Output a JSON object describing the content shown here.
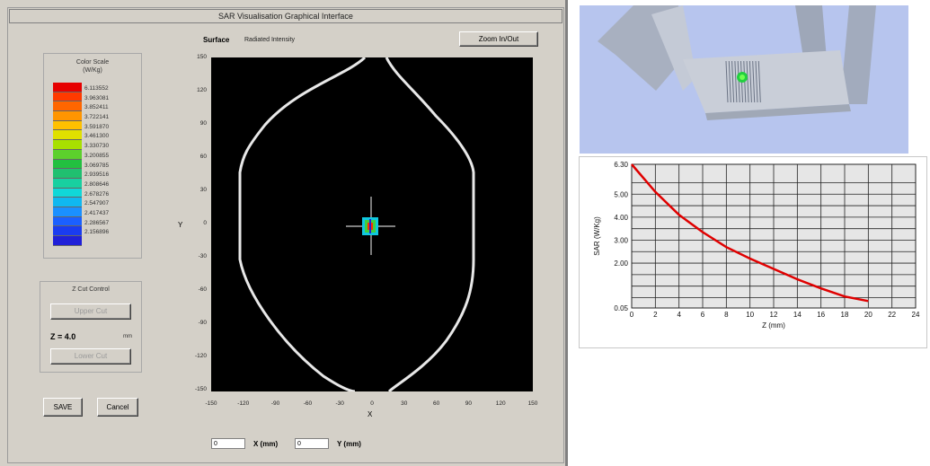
{
  "window": {
    "title": "SAR Visualisation Graphical Interface"
  },
  "surface": {
    "label": "Surface",
    "value": "Radiated Intensity"
  },
  "buttons": {
    "zoom": "Zoom In/Out",
    "save": "SAVE",
    "cancel": "Cancel",
    "upper": "Upper Cut",
    "lower": "Lower Cut"
  },
  "color_scale": {
    "title": "Color Scale",
    "unit": "(W/Kg)",
    "colors": [
      "#e60000",
      "#ff3a00",
      "#ff6600",
      "#ff9500",
      "#ffc000",
      "#e0e000",
      "#a8e000",
      "#5cd02c",
      "#22c040",
      "#20c070",
      "#18d0a0",
      "#10d8d8",
      "#10b8f0",
      "#1a90ff",
      "#1a60ff",
      "#1a3cf0",
      "#2020d8"
    ],
    "values": [
      "6.113552",
      "3.963081",
      "3.852411",
      "3.722141",
      "3.591870",
      "3.461300",
      "3.330730",
      "3.200855",
      "3.069785",
      "2.939516",
      "2.808646",
      "2.678276",
      "2.547907",
      "2.417437",
      "2.286567",
      "2.156896"
    ]
  },
  "zcut": {
    "title": "Z Cut Control",
    "value": "Z = 4.0",
    "unit": "mm"
  },
  "plot": {
    "y_ticks": [
      "150",
      "120",
      "90",
      "60",
      "30",
      "0",
      "-30",
      "-60",
      "-90",
      "-120",
      "-150"
    ],
    "x_ticks": [
      "-150",
      "-120",
      "-90",
      "-60",
      "-30",
      "0",
      "30",
      "60",
      "90",
      "120",
      "150"
    ],
    "x_label": "X",
    "y_label": "Y"
  },
  "inputs": {
    "x_value": "0",
    "x_label": "X (mm)",
    "y_value": "0",
    "y_label": "Y (mm)"
  },
  "chart_data": {
    "type": "line",
    "xlabel": "Z (mm)",
    "ylabel": "SAR (W/Kg)",
    "xlim": [
      0,
      24
    ],
    "ylim": [
      0.05,
      6.3
    ],
    "x_ticks": [
      "0",
      "2",
      "4",
      "6",
      "8",
      "10",
      "12",
      "14",
      "16",
      "18",
      "20",
      "22",
      "24"
    ],
    "y_ticks": [
      "6.30",
      "5.00",
      "4.00",
      "3.00",
      "2.00",
      "0.05"
    ],
    "color": "#e00000",
    "series": [
      {
        "x": [
          0,
          2,
          4,
          6,
          8,
          10,
          12,
          14,
          16,
          18,
          20
        ],
        "y": [
          6.3,
          5.1,
          4.1,
          3.35,
          2.7,
          2.2,
          1.75,
          1.3,
          0.9,
          0.55,
          0.35
        ]
      }
    ]
  }
}
